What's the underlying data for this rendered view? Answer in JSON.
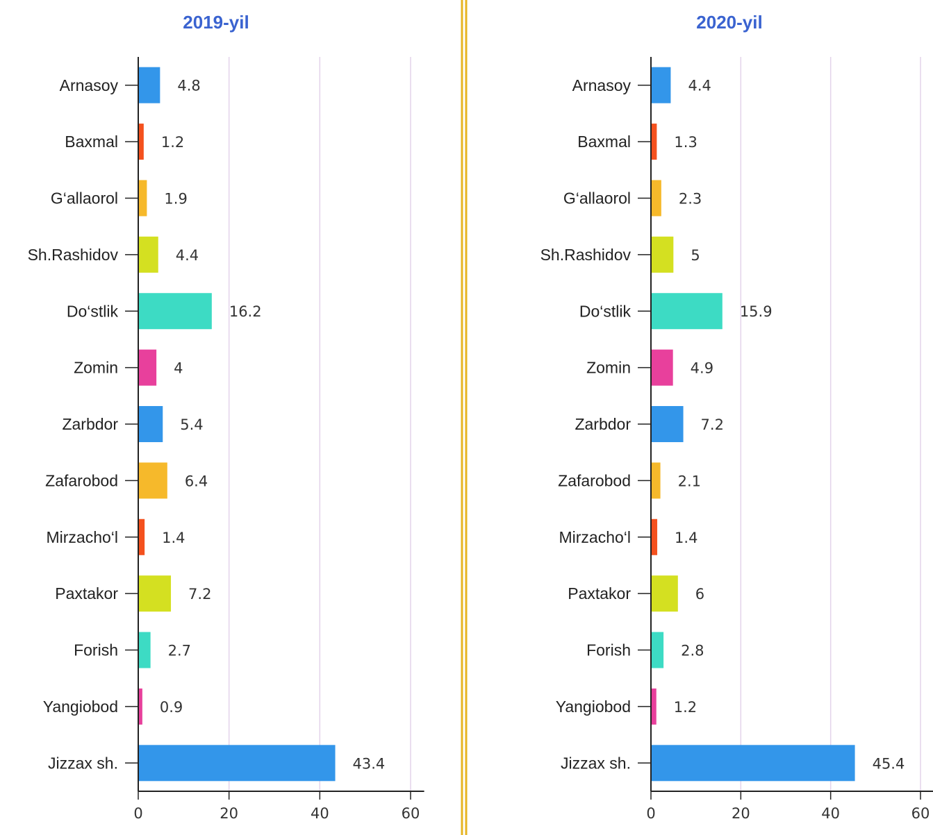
{
  "chart_data": [
    {
      "type": "bar",
      "orientation": "horizontal",
      "title": "2019-yil",
      "categories": [
        "Arnasoy",
        "Baxmal",
        "G‘allaorol",
        "Sh.Rashidov",
        "Do‘stlik",
        "Zomin",
        "Zarbdor",
        "Zafarobod",
        "Mirzacho‘l",
        "Paxtakor",
        "Forish",
        "Yangiobod",
        "Jizzax sh."
      ],
      "values": [
        4.8,
        1.2,
        1.9,
        4.4,
        16.2,
        4,
        5.4,
        6.4,
        1.4,
        7.2,
        2.7,
        0.9,
        43.4
      ],
      "colors": [
        "#3396ea",
        "#f4511e",
        "#f6b92b",
        "#d4e021",
        "#3ddbc4",
        "#e8409c",
        "#3396ea",
        "#f6b92b",
        "#f4511e",
        "#d4e021",
        "#3ddbc4",
        "#e8409c",
        "#3396ea"
      ],
      "xlim": [
        0,
        63
      ],
      "xticks": [
        0,
        20,
        40,
        60
      ],
      "grid": true
    },
    {
      "type": "bar",
      "orientation": "horizontal",
      "title": "2020-yil",
      "categories": [
        "Arnasoy",
        "Baxmal",
        "G‘allaorol",
        "Sh.Rashidov",
        "Do‘stlik",
        "Zomin",
        "Zarbdor",
        "Zafarobod",
        "Mirzacho‘l",
        "Paxtakor",
        "Forish",
        "Yangiobod",
        "Jizzax sh."
      ],
      "values": [
        4.4,
        1.3,
        2.3,
        5,
        15.9,
        4.9,
        7.2,
        2.1,
        1.4,
        6,
        2.8,
        1.2,
        45.4
      ],
      "colors": [
        "#3396ea",
        "#f4511e",
        "#f6b92b",
        "#d4e021",
        "#3ddbc4",
        "#e8409c",
        "#3396ea",
        "#f6b92b",
        "#f4511e",
        "#d4e021",
        "#3ddbc4",
        "#e8409c",
        "#3396ea"
      ],
      "xlim": [
        0,
        63
      ],
      "xticks": [
        0,
        20,
        40,
        60
      ],
      "grid": true
    }
  ]
}
